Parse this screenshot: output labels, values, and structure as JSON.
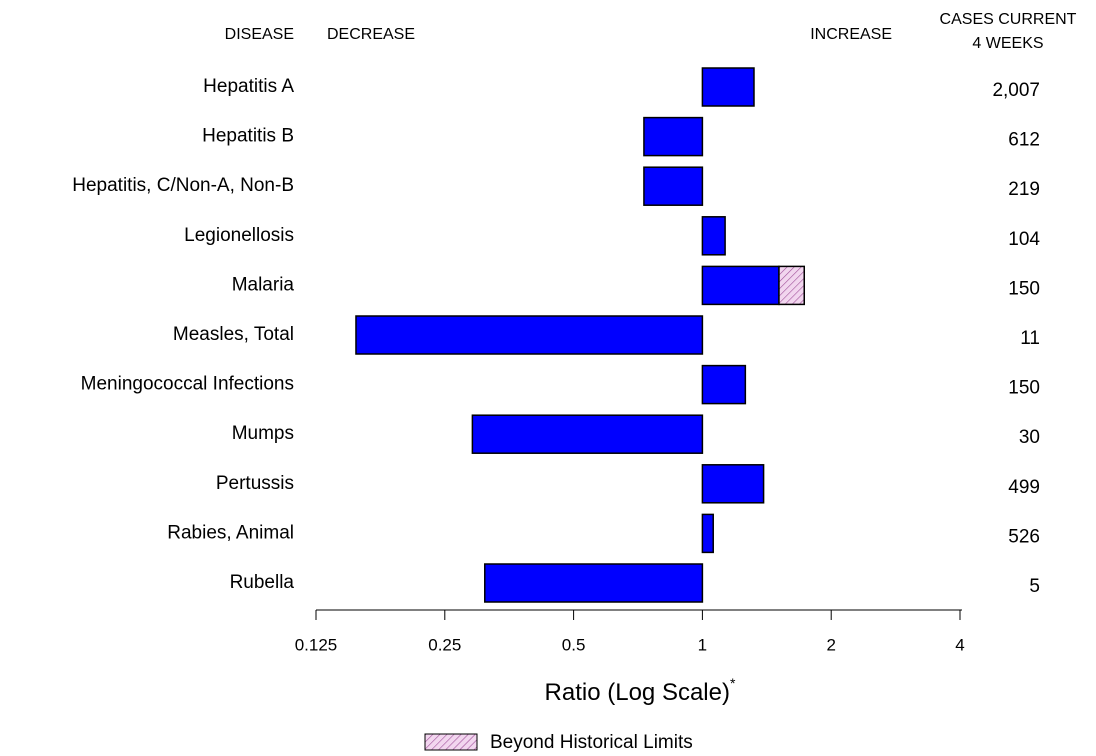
{
  "chart_data": {
    "type": "bar",
    "orientation": "horizontal",
    "log_scale": true,
    "headers": {
      "disease": "DISEASE",
      "decrease": "DECREASE",
      "increase": "INCREASE",
      "cases_line1": "CASES CURRENT",
      "cases_line2": "4 WEEKS"
    },
    "categories": [
      "Hepatitis A",
      "Hepatitis B",
      "Hepatitis, C/Non-A, Non-B",
      "Legionellosis",
      "Malaria",
      "Measles, Total",
      "Meningococcal Infections",
      "Mumps",
      "Pertussis",
      "Rabies, Animal",
      "Rubella"
    ],
    "values": [
      1.32,
      0.73,
      0.73,
      1.13,
      1.73,
      0.155,
      1.26,
      0.29,
      1.39,
      1.06,
      0.31
    ],
    "historical_limits": [
      null,
      null,
      null,
      null,
      1.51,
      null,
      null,
      null,
      null,
      null,
      null
    ],
    "cases": [
      "2,007",
      "612",
      "219",
      "104",
      "150",
      "11",
      "150",
      "30",
      "499",
      "526",
      "5"
    ],
    "color": "#0000ff",
    "beyond_color": "#f2d6ef",
    "beyond_hatch_color": "#a0509a",
    "xlim": [
      0.125,
      4
    ],
    "xticks": [
      0.125,
      0.25,
      0.5,
      1,
      2,
      4
    ],
    "x_label": "Ratio (Log Scale)",
    "x_label_note": "*",
    "legend_label": "Beyond Historical Limits"
  }
}
